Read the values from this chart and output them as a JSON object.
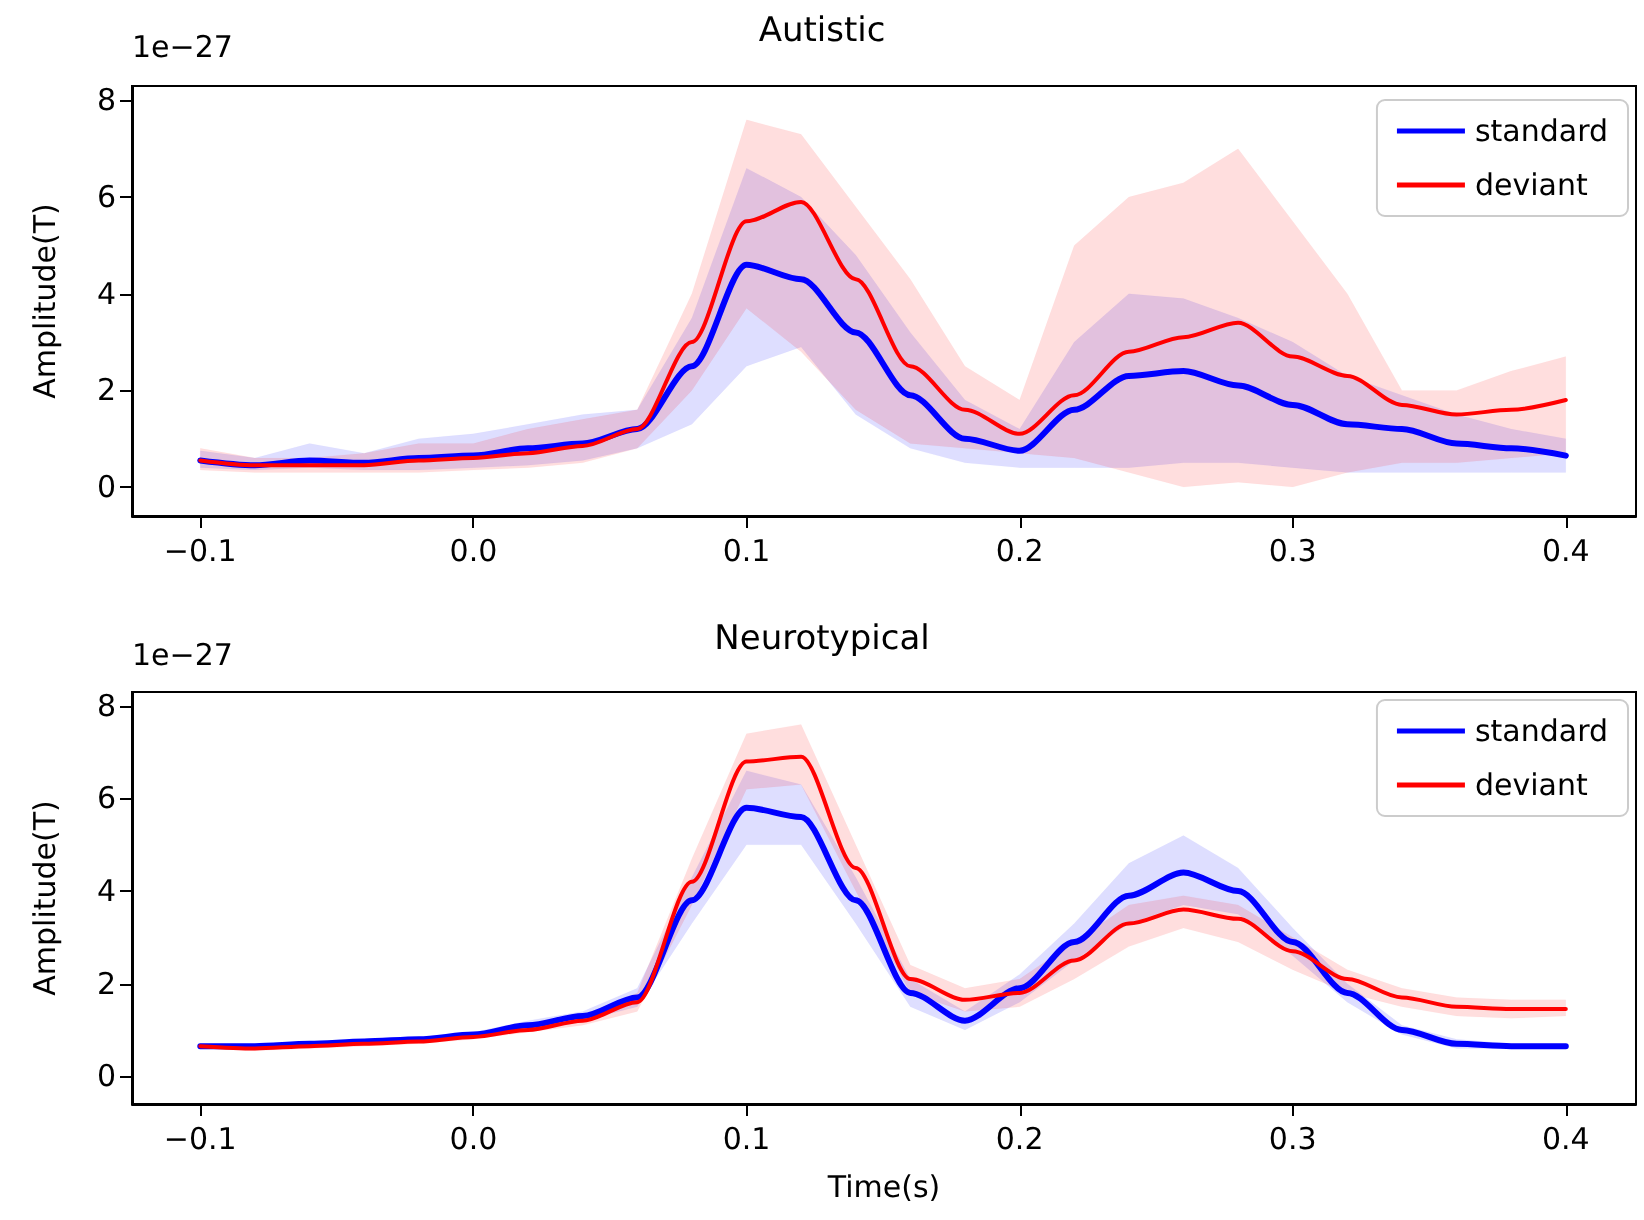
{
  "chart_data": [
    {
      "type": "line",
      "title": "Autistic",
      "ylabel": "Amplitude(T)",
      "annotations": [
        "1e−27"
      ],
      "legend": "top right",
      "grid": false,
      "line_style": "solid",
      "marker": "none",
      "x": [
        -0.1,
        -0.08,
        -0.06,
        -0.04,
        -0.02,
        0,
        0.02,
        0.04,
        0.06,
        0.08,
        0.1,
        0.12,
        0.14,
        0.16,
        0.18,
        0.2,
        0.22,
        0.24,
        0.26,
        0.28,
        0.3,
        0.32,
        0.34,
        0.36,
        0.38,
        0.4
      ],
      "xlim": [
        -0.125,
        0.4257
      ],
      "xticks": [
        {
          "value": -0.1,
          "label": "−0.1"
        },
        {
          "value": 0,
          "label": "0.0"
        },
        {
          "value": 0.1,
          "label": "0.1"
        },
        {
          "value": 0.2,
          "label": "0.2"
        },
        {
          "value": 0.3,
          "label": "0.3"
        },
        {
          "value": 0.4,
          "label": "0.4"
        }
      ],
      "ylim": [
        -0.6,
        8.3
      ],
      "yticks": [
        0,
        2,
        4,
        6,
        8
      ],
      "series": [
        {
          "name": "standard",
          "color": "#0000ff",
          "values": [
            0.55,
            0.45,
            0.55,
            0.5,
            0.6,
            0.65,
            0.8,
            0.9,
            1.2,
            2.5,
            4.6,
            4.3,
            3.2,
            1.9,
            1.0,
            0.75,
            1.6,
            2.3,
            2.4,
            2.1,
            1.7,
            1.3,
            1.2,
            0.9,
            0.8,
            0.65
          ],
          "lower": [
            0.4,
            0.35,
            0.4,
            0.35,
            0.35,
            0.4,
            0.45,
            0.55,
            0.8,
            1.3,
            2.5,
            2.9,
            1.5,
            0.8,
            0.5,
            0.4,
            0.4,
            0.4,
            0.5,
            0.5,
            0.4,
            0.3,
            0.3,
            0.3,
            0.3,
            0.3
          ],
          "upper": [
            0.75,
            0.6,
            0.9,
            0.7,
            1.0,
            1.1,
            1.3,
            1.5,
            1.6,
            3.5,
            6.6,
            6.0,
            4.8,
            3.2,
            1.8,
            1.2,
            3.0,
            4.0,
            3.9,
            3.5,
            3.0,
            2.3,
            1.9,
            1.5,
            1.2,
            1.0
          ]
        },
        {
          "name": "deviant",
          "color": "#ff0000",
          "values": [
            0.55,
            0.45,
            0.45,
            0.45,
            0.55,
            0.6,
            0.7,
            0.85,
            1.2,
            3.0,
            5.5,
            5.9,
            4.3,
            2.5,
            1.6,
            1.1,
            1.9,
            2.8,
            3.1,
            3.4,
            2.7,
            2.3,
            1.7,
            1.5,
            1.6,
            1.8
          ],
          "lower": [
            0.35,
            0.3,
            0.3,
            0.3,
            0.3,
            0.35,
            0.4,
            0.5,
            0.8,
            2.0,
            3.7,
            2.8,
            1.6,
            0.9,
            0.8,
            0.7,
            0.6,
            0.3,
            0.0,
            0.1,
            0.0,
            0.3,
            0.5,
            0.5,
            0.6,
            0.7
          ],
          "upper": [
            0.8,
            0.6,
            0.6,
            0.7,
            0.9,
            0.9,
            1.2,
            1.4,
            1.6,
            4.0,
            7.6,
            7.3,
            5.8,
            4.3,
            2.5,
            1.8,
            5.0,
            6.0,
            6.3,
            7.0,
            5.5,
            4.0,
            2.0,
            2.0,
            2.4,
            2.7
          ]
        }
      ]
    },
    {
      "type": "line",
      "title": "Neurotypical",
      "xlabel": "Time(s)",
      "ylabel": "Amplitude(T)",
      "annotations": [
        "1e−27"
      ],
      "legend": "top right",
      "grid": false,
      "line_style": "solid",
      "marker": "none",
      "x": [
        -0.1,
        -0.08,
        -0.06,
        -0.04,
        -0.02,
        0,
        0.02,
        0.04,
        0.06,
        0.08,
        0.1,
        0.12,
        0.14,
        0.16,
        0.18,
        0.2,
        0.22,
        0.24,
        0.26,
        0.28,
        0.3,
        0.32,
        0.34,
        0.36,
        0.38,
        0.4
      ],
      "xlim": [
        -0.125,
        0.4257
      ],
      "xticks": [
        {
          "value": -0.1,
          "label": "−0.1"
        },
        {
          "value": 0,
          "label": "0.0"
        },
        {
          "value": 0.1,
          "label": "0.1"
        },
        {
          "value": 0.2,
          "label": "0.2"
        },
        {
          "value": 0.3,
          "label": "0.3"
        },
        {
          "value": 0.4,
          "label": "0.4"
        }
      ],
      "ylim": [
        -0.6,
        8.3
      ],
      "yticks": [
        0,
        2,
        4,
        6,
        8
      ],
      "series": [
        {
          "name": "standard",
          "color": "#0000ff",
          "values": [
            0.65,
            0.65,
            0.7,
            0.75,
            0.8,
            0.9,
            1.1,
            1.3,
            1.7,
            3.8,
            5.8,
            5.6,
            3.8,
            1.8,
            1.2,
            1.9,
            2.9,
            3.9,
            4.4,
            4.0,
            2.9,
            1.8,
            1.0,
            0.7,
            0.65,
            0.65
          ],
          "lower": [
            0.6,
            0.6,
            0.65,
            0.7,
            0.75,
            0.85,
            1.0,
            1.2,
            1.5,
            3.3,
            5.0,
            5.0,
            3.3,
            1.5,
            1.0,
            1.6,
            2.5,
            3.3,
            3.7,
            3.5,
            2.6,
            1.6,
            0.9,
            0.6,
            0.6,
            0.6
          ],
          "upper": [
            0.7,
            0.7,
            0.75,
            0.8,
            0.85,
            0.95,
            1.2,
            1.4,
            1.9,
            4.3,
            6.6,
            6.3,
            4.3,
            2.1,
            1.4,
            2.2,
            3.3,
            4.6,
            5.2,
            4.5,
            3.2,
            2.0,
            1.1,
            0.8,
            0.7,
            0.7
          ]
        },
        {
          "name": "deviant",
          "color": "#ff0000",
          "values": [
            0.65,
            0.6,
            0.65,
            0.7,
            0.75,
            0.85,
            1.0,
            1.2,
            1.6,
            4.2,
            6.8,
            6.9,
            4.5,
            2.1,
            1.65,
            1.8,
            2.5,
            3.3,
            3.6,
            3.4,
            2.7,
            2.1,
            1.7,
            1.5,
            1.45,
            1.45
          ],
          "lower": [
            0.6,
            0.55,
            0.6,
            0.65,
            0.7,
            0.8,
            0.95,
            1.1,
            1.4,
            3.7,
            6.2,
            6.3,
            4.0,
            1.8,
            1.4,
            1.5,
            2.1,
            2.8,
            3.2,
            2.9,
            2.3,
            1.8,
            1.5,
            1.3,
            1.25,
            1.3
          ],
          "upper": [
            0.7,
            0.65,
            0.7,
            0.75,
            0.8,
            0.9,
            1.1,
            1.3,
            1.8,
            4.7,
            7.4,
            7.6,
            5.0,
            2.4,
            1.9,
            2.1,
            2.9,
            3.7,
            3.9,
            3.7,
            3.0,
            2.3,
            1.9,
            1.7,
            1.65,
            1.65
          ]
        }
      ]
    }
  ]
}
